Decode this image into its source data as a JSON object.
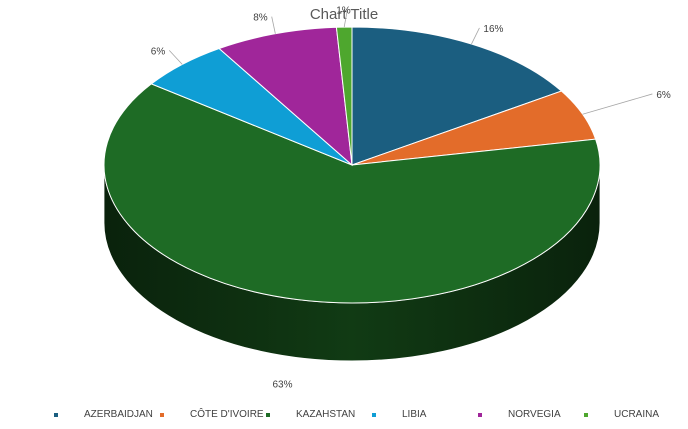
{
  "chart_data": {
    "type": "pie",
    "title": "Chart Title",
    "categories": [
      "AZERBAIDJAN",
      "CÔTE D'IVOIRE",
      "KAZAHSTAN",
      "LIBIA",
      "NORVEGIA",
      "UCRAINA"
    ],
    "values": [
      16,
      6,
      63,
      6,
      8,
      1
    ],
    "data_labels": [
      "16%",
      "6%",
      "63%",
      "6%",
      "8%",
      "1%"
    ],
    "colors": [
      "#1B5E80",
      "#E36C2A",
      "#1E6B25",
      "#0F9ED5",
      "#A0269A",
      "#4EA72E"
    ],
    "style": "3d",
    "legend_position": "bottom"
  }
}
